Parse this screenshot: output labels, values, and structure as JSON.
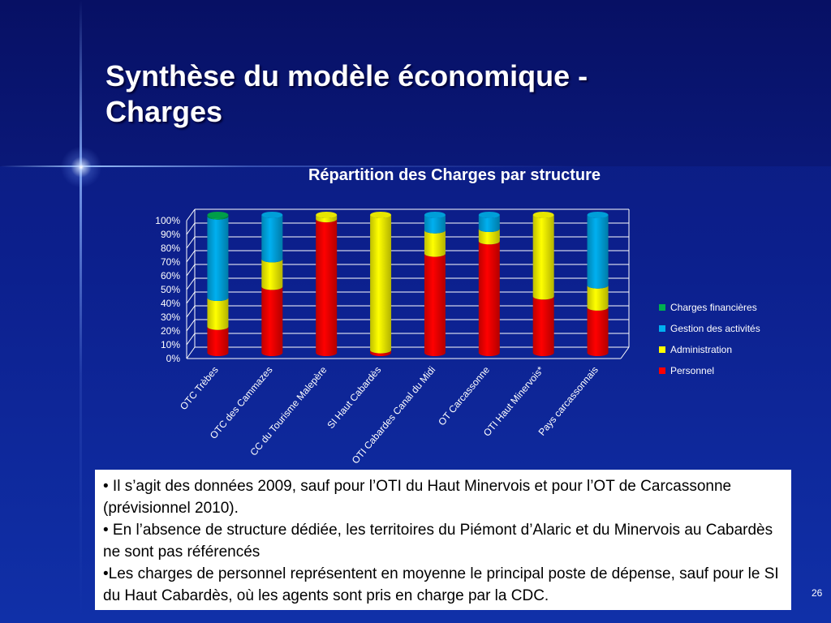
{
  "slide": {
    "title": "Synthèse du modèle économique -\nCharges",
    "page_number": "26"
  },
  "notes": [
    "• Il s’agit des données 2009, sauf pour l’OTI du Haut Minervois et pour l’OT de Carcassonne (prévisionnel 2010).",
    "• En l’absence de structure dédiée, les territoires du Piémont d’Alaric et du Minervois au Cabardès ne sont pas référencés",
    "•Les charges de personnel  représentent en moyenne le principal poste de dépense, sauf pour le SI du Haut Cabardès, où les agents sont pris en charge par la CDC."
  ],
  "chart_data": {
    "type": "bar",
    "stacked": true,
    "percent": true,
    "title": "Répartition des Charges par structure",
    "categories": [
      "OTC Trèbes",
      "OTC des Cammazes",
      "CC du Tourisme Malepère",
      "SI Haut Cabardès",
      "OTI Cabardes Canal du Midi",
      "OT Carcassonne",
      "OTI Haut Minervois*",
      "Pays carcassonnais"
    ],
    "ylim": [
      0,
      100
    ],
    "yticks": [
      "0%",
      "10%",
      "20%",
      "30%",
      "40%",
      "50%",
      "60%",
      "70%",
      "80%",
      "90%",
      "100%"
    ],
    "grid": true,
    "legend_position": "right",
    "series": [
      {
        "name": "Personnel",
        "color": "#ff0000",
        "values": [
          19,
          48,
          97,
          2,
          72,
          81,
          41,
          33
        ]
      },
      {
        "name": "Administration",
        "color": "#ffff00",
        "values": [
          21,
          20,
          3,
          98,
          17,
          9,
          59,
          16
        ]
      },
      {
        "name": "Gestion des activités",
        "color": "#00b0f0",
        "values": [
          59,
          32,
          0,
          0,
          11,
          10,
          0,
          51
        ]
      },
      {
        "name": "Charges financières",
        "color": "#00b050",
        "values": [
          1,
          0,
          0,
          0,
          0,
          0,
          0,
          0
        ]
      }
    ],
    "legend_order": [
      "Charges financières",
      "Gestion des activités",
      "Administration",
      "Personnel"
    ]
  }
}
